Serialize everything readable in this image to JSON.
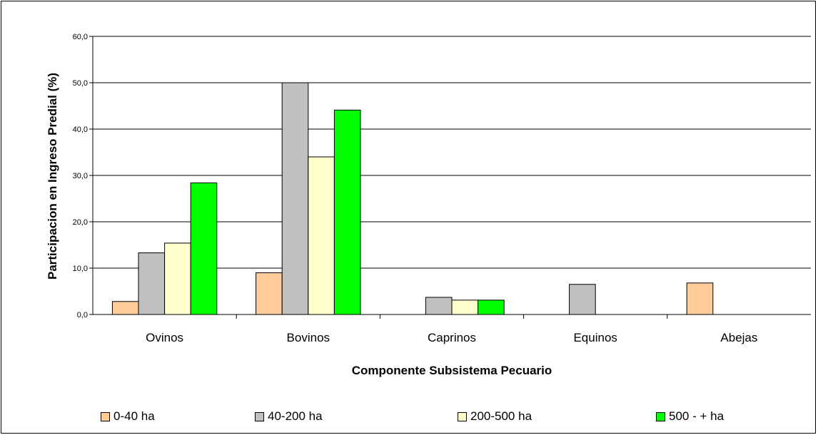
{
  "chart_data": {
    "type": "bar",
    "categories": [
      "Ovinos",
      "Bovinos",
      "Caprinos",
      "Equinos",
      "Abejas"
    ],
    "series": [
      {
        "name": "0-40 ha",
        "color": "#ffcc99",
        "values": [
          2.8,
          9.0,
          0,
          0,
          6.8
        ]
      },
      {
        "name": "40-200 ha",
        "color": "#c0c0c0",
        "values": [
          13.3,
          50.0,
          3.7,
          6.5,
          0
        ]
      },
      {
        "name": "200-500 ha",
        "color": "#ffffcc",
        "values": [
          15.4,
          34.0,
          3.1,
          0,
          0
        ]
      },
      {
        "name": "500 - + ha",
        "color": "#00ff00",
        "values": [
          28.4,
          44.1,
          3.1,
          0,
          0
        ]
      }
    ],
    "ylim": [
      0,
      60
    ],
    "yticks": [
      "0,0",
      "10,0",
      "20,0",
      "30,0",
      "40,0",
      "50,0",
      "60,0"
    ],
    "xlabel": "Componente Subsistema Pecuario",
    "ylabel": "Participacion en Ingreso Predial (%)",
    "grid": true,
    "legend_position": "bottom"
  }
}
